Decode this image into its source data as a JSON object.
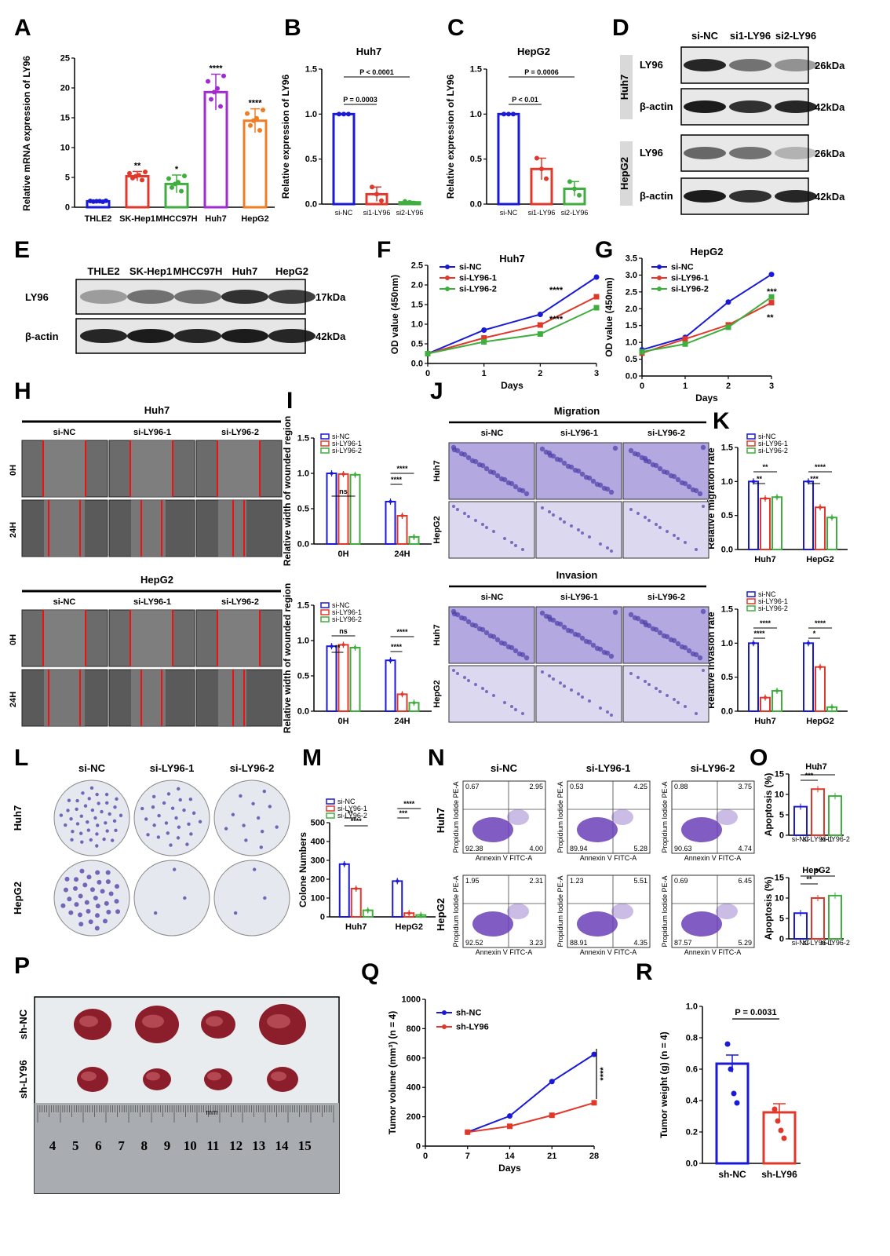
{
  "panel_labels": {
    "A": "A",
    "B": "B",
    "C": "C",
    "D": "D",
    "E": "E",
    "F": "F",
    "G": "G",
    "H": "H",
    "I": "I",
    "J": "J",
    "K": "K",
    "L": "L",
    "M": "M",
    "N": "N",
    "O": "O",
    "P": "P",
    "Q": "Q",
    "R": "R"
  },
  "colors": {
    "blue": "#1a1ad6",
    "red": "#e0392b",
    "green": "#3fae3f",
    "purple": "#a12bd1",
    "orange": "#f07d24"
  },
  "chart_data": [
    {
      "id": "A",
      "type": "bar",
      "categories": [
        "THLE2",
        "SK-Hep1",
        "MHCC97H",
        "Huh7",
        "HepG2"
      ],
      "values": [
        1.0,
        5.2,
        3.9,
        19.3,
        14.5
      ],
      "errors": [
        0.1,
        0.8,
        1.5,
        3.0,
        2.0
      ],
      "ylabel": "Relative mRNA expression of LY96",
      "ylim": [
        0,
        25
      ],
      "yticks": [
        0,
        5,
        10,
        15,
        20,
        25
      ],
      "sig": [
        "",
        "**",
        "*",
        "****",
        "****"
      ]
    },
    {
      "id": "B",
      "type": "bar",
      "title": "Huh7",
      "categories": [
        "si-NC",
        "si1-LY96",
        "si2-LY96"
      ],
      "values": [
        1.0,
        0.11,
        0.02
      ],
      "errors": [
        0,
        0.08,
        0.01
      ],
      "ylabel": "Relative expression of LY96",
      "ylim": [
        0,
        1.5
      ],
      "yticks": [
        "0.0",
        "0.5",
        "1.0",
        "1.5"
      ],
      "pvals": [
        "P = 0.0003",
        "P < 0.0001"
      ]
    },
    {
      "id": "C",
      "type": "bar",
      "title": "HepG2",
      "categories": [
        "si-NC",
        "si1-LY96",
        "si2-LY96"
      ],
      "values": [
        1.0,
        0.39,
        0.17
      ],
      "errors": [
        0,
        0.12,
        0.08
      ],
      "ylabel": "Relative expression of LY96",
      "ylim": [
        0,
        1.5
      ],
      "yticks": [
        "0.0",
        "0.5",
        "1.0",
        "1.5"
      ],
      "pvals": [
        "P < 0.01",
        "P = 0.0006"
      ]
    },
    {
      "id": "F",
      "type": "line",
      "title": "Huh7",
      "xlabel": "Days",
      "ylabel": "OD value (450nm)",
      "x": [
        0,
        1,
        2,
        3
      ],
      "ylim": [
        0,
        2.5
      ],
      "yticks": [
        "0.0",
        "0.5",
        "1.0",
        "1.5",
        "2.0",
        "2.5"
      ],
      "series": [
        {
          "name": "si-NC",
          "values": [
            0.25,
            0.85,
            1.25,
            2.2
          ]
        },
        {
          "name": "si-LY96-1",
          "values": [
            0.25,
            0.65,
            0.98,
            1.7
          ]
        },
        {
          "name": "si-LY96-2",
          "values": [
            0.25,
            0.55,
            0.75,
            1.42
          ]
        }
      ],
      "sig": [
        "****",
        "****"
      ]
    },
    {
      "id": "G",
      "type": "line",
      "title": "HepG2",
      "xlabel": "Days",
      "ylabel": "OD value (450nm)",
      "x": [
        0,
        1,
        2,
        3
      ],
      "ylim": [
        0,
        3.5
      ],
      "yticks": [
        "0.0",
        "0.5",
        "1.0",
        "1.5",
        "2.0",
        "2.5",
        "3.0",
        "3.5"
      ],
      "series": [
        {
          "name": "si-NC",
          "values": [
            0.78,
            1.15,
            2.2,
            3.02
          ]
        },
        {
          "name": "si-LY96-1",
          "values": [
            0.68,
            1.1,
            1.52,
            2.18
          ]
        },
        {
          "name": "si-LY96-2",
          "values": [
            0.72,
            0.95,
            1.45,
            2.35
          ]
        }
      ],
      "sig": [
        "***",
        "**"
      ]
    },
    {
      "id": "I1",
      "type": "bar",
      "categories": [
        "0H",
        "24H"
      ],
      "ylabel": "Relative width of wounded region",
      "ylim": [
        0,
        1.5
      ],
      "yticks": [
        "0.0",
        "0.5",
        "1.0",
        "1.5"
      ],
      "series": [
        {
          "name": "si-NC",
          "values": [
            1.0,
            0.6
          ]
        },
        {
          "name": "si-LY96-1",
          "values": [
            0.99,
            0.4
          ]
        },
        {
          "name": "si-LY96-2",
          "values": [
            0.98,
            0.1
          ]
        }
      ],
      "sig": [
        "ns",
        "****",
        "****"
      ]
    },
    {
      "id": "I2",
      "type": "bar",
      "categories": [
        "0H",
        "24H"
      ],
      "ylabel": "Relative width of wounded region",
      "ylim": [
        0,
        1.5
      ],
      "yticks": [
        "0.0",
        "0.5",
        "1.0",
        "1.5"
      ],
      "series": [
        {
          "name": "si-NC",
          "values": [
            0.92,
            0.72
          ]
        },
        {
          "name": "si-LY96-1",
          "values": [
            0.94,
            0.24
          ]
        },
        {
          "name": "si-LY96-2",
          "values": [
            0.9,
            0.12
          ]
        }
      ],
      "sig": [
        "ns",
        "**",
        "****",
        "****"
      ]
    },
    {
      "id": "K1",
      "type": "bar",
      "categories": [
        "Huh7",
        "HepG2"
      ],
      "ylabel": "Relative migration rate",
      "ylim": [
        0,
        1.5
      ],
      "yticks": [
        "0.0",
        "0.5",
        "1.0",
        "1.5"
      ],
      "series": [
        {
          "name": "si-NC",
          "values": [
            1.0,
            1.0
          ]
        },
        {
          "name": "si-LY96-1",
          "values": [
            0.75,
            0.62
          ]
        },
        {
          "name": "si-LY96-2",
          "values": [
            0.77,
            0.47
          ]
        }
      ],
      "sig": [
        "**",
        "**",
        "***",
        "****"
      ]
    },
    {
      "id": "K2",
      "type": "bar",
      "categories": [
        "Huh7",
        "HepG2"
      ],
      "ylabel": "Relative invasion rate",
      "ylim": [
        0,
        1.5
      ],
      "yticks": [
        "0.0",
        "0.5",
        "1.0",
        "1.5"
      ],
      "series": [
        {
          "name": "si-NC",
          "values": [
            1.0,
            1.0
          ]
        },
        {
          "name": "si-LY96-1",
          "values": [
            0.2,
            0.65
          ]
        },
        {
          "name": "si-LY96-2",
          "values": [
            0.3,
            0.06
          ]
        }
      ],
      "sig": [
        "****",
        "****",
        "*",
        "****"
      ]
    },
    {
      "id": "M",
      "type": "bar",
      "categories": [
        "Huh7",
        "HepG2"
      ],
      "ylabel": "Colone Numbers",
      "ylim": [
        0,
        500
      ],
      "yticks": [
        "0",
        "100",
        "200",
        "300",
        "400",
        "500"
      ],
      "series": [
        {
          "name": "si-NC",
          "values": [
            280,
            190
          ]
        },
        {
          "name": "si-LY96-1",
          "values": [
            150,
            20
          ]
        },
        {
          "name": "si-LY96-2",
          "values": [
            35,
            10
          ]
        }
      ],
      "sig": [
        "**",
        "****",
        "***",
        "****"
      ]
    },
    {
      "id": "O1",
      "type": "bar",
      "title": "Huh7",
      "categories": [
        "si-NC",
        "si-LY96-1",
        "si-LY96-2"
      ],
      "ylabel": "Apoptosis (%)",
      "values": [
        7.0,
        11.3,
        9.6
      ],
      "ylim": [
        0,
        15
      ],
      "yticks": [
        "0",
        "5",
        "10",
        "15"
      ],
      "sig": [
        "***",
        "*"
      ]
    },
    {
      "id": "O2",
      "type": "bar",
      "title": "HepG2",
      "categories": [
        "si-NC",
        "si-LY96-1",
        "si-LY96-2"
      ],
      "ylabel": "Apoptosis (%)",
      "values": [
        6.3,
        10.0,
        10.6
      ],
      "ylim": [
        0,
        15
      ],
      "yticks": [
        "0",
        "5",
        "10",
        "15"
      ],
      "sig": [
        "**",
        "**"
      ]
    },
    {
      "id": "Q",
      "type": "line",
      "xlabel": "Days",
      "ylabel": "Tumor volume (mm³) (n = 4)",
      "x": [
        7,
        14,
        21,
        28
      ],
      "xticks": [
        "0",
        "7",
        "14",
        "21",
        "28"
      ],
      "ylim": [
        0,
        1000
      ],
      "yticks": [
        "0",
        "200",
        "400",
        "600",
        "800",
        "1000"
      ],
      "series": [
        {
          "name": "sh-NC",
          "values": [
            95,
            205,
            440,
            625
          ]
        },
        {
          "name": "sh-LY96",
          "values": [
            95,
            135,
            210,
            295
          ]
        }
      ],
      "sig": [
        "****"
      ]
    },
    {
      "id": "R",
      "type": "bar",
      "categories": [
        "sh-NC",
        "sh-LY96"
      ],
      "values": [
        0.635,
        0.325
      ],
      "ylabel": "Tumor weight (g) (n = 4)",
      "ylim": [
        0,
        1.0
      ],
      "yticks": [
        "0.0",
        "0.2",
        "0.4",
        "0.6",
        "0.8",
        "1.0"
      ],
      "pvals": [
        "P = 0.0031"
      ]
    }
  ],
  "blots": {
    "D": {
      "lanes": [
        "si-NC",
        "si1-LY96",
        "si2-LY96"
      ],
      "groups": [
        "Huh7",
        "HepG2"
      ],
      "bands": [
        "LY96",
        "β-actin"
      ],
      "sizes": [
        "26kDa",
        "42kDa"
      ]
    },
    "E": {
      "lanes": [
        "THLE2",
        "SK-Hep1",
        "MHCC97H",
        "Huh7",
        "HepG2"
      ],
      "bands": [
        "LY96",
        "β-actin"
      ],
      "sizes": [
        "17kDa",
        "42kDa"
      ]
    }
  },
  "wound": {
    "H1": "Huh7",
    "H2": "HepG2",
    "cols": [
      "si-NC",
      "si-LY96-1",
      "si-LY96-2"
    ],
    "rows": [
      "0H",
      "24H"
    ]
  },
  "transwell": {
    "mig": "Migration",
    "inv": "Invasion",
    "cols": [
      "si-NC",
      "si-LY96-1",
      "si-LY96-2"
    ],
    "rows": [
      "Huh7",
      "HepG2"
    ]
  },
  "colony": {
    "cols": [
      "si-NC",
      "si-LY96-1",
      "si-LY96-2"
    ],
    "rows": [
      "Huh7",
      "HepG2"
    ]
  },
  "flow": {
    "cols": [
      "si-NC",
      "si-LY96-1",
      "si-LY96-2"
    ],
    "rows": [
      "Huh7",
      "HepG2"
    ],
    "quadrants": [
      [
        "0.67",
        "2.95",
        "92.38",
        "4.00"
      ],
      [
        "0.53",
        "4.25",
        "89.94",
        "5.28"
      ],
      [
        "0.88",
        "3.75",
        "90.63",
        "4.74"
      ],
      [
        "1.95",
        "2.31",
        "92.52",
        "3.23"
      ],
      [
        "1.23",
        "5.51",
        "88.91",
        "4.35"
      ],
      [
        "0.69",
        "6.45",
        "87.57",
        "5.29"
      ]
    ],
    "xaxis": "Annexin V FITC-A",
    "yaxis": "Propidium Iodide PE-A"
  },
  "tumor": {
    "rows": [
      "sh-NC",
      "sh-LY96"
    ],
    "ruler": [
      "4",
      "5",
      "6",
      "7",
      "8",
      "9",
      "10",
      "11",
      "12",
      "13",
      "14",
      "15"
    ],
    "unit": "mm"
  }
}
